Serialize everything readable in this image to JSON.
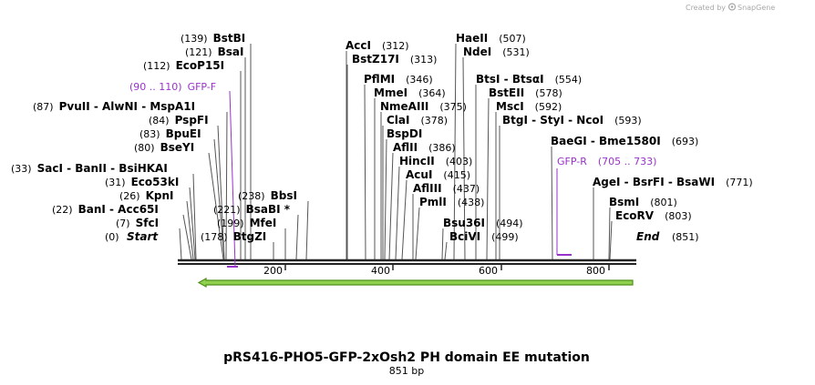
{
  "credit": {
    "text": "Created by",
    "brand": "SnapGene"
  },
  "title": "pRS416-PHO5-GFP-2xOsh2 PH domain EE mutation",
  "subtitle": "851 bp",
  "seq_length": 851,
  "ticks": [
    "200",
    "400",
    "600",
    "800"
  ],
  "ends": {
    "start": {
      "pos": "(0)",
      "name": "Start"
    },
    "end": {
      "pos": "(851)",
      "name": "End"
    }
  },
  "left_labels": [
    {
      "pos": "(139)",
      "text": "BstBI"
    },
    {
      "pos": "(121)",
      "text": "BsaI"
    },
    {
      "pos": "(112)",
      "text": "EcoP15I"
    },
    {
      "pos": "(87)",
      "text": "PvuII - AlwNI - MspA1I"
    },
    {
      "pos": "(84)",
      "text": "PspFI"
    },
    {
      "pos": "(83)",
      "text": "BpuEI"
    },
    {
      "pos": "(80)",
      "text": "BseYI"
    },
    {
      "pos": "(33)",
      "text": "SacI - BanII - BsiHKAI"
    },
    {
      "pos": "(31)",
      "text": "Eco53kI"
    },
    {
      "pos": "(26)",
      "text": "KpnI"
    },
    {
      "pos": "(22)",
      "text": "BanI - Acc65I"
    },
    {
      "pos": "(7)",
      "text": "SfcI"
    }
  ],
  "inner_labels": [
    {
      "pos": "(238)",
      "text": "BbsI"
    },
    {
      "pos": "(221)",
      "text": "BsaBI *"
    },
    {
      "pos": "(199)",
      "text": "MfeI"
    },
    {
      "pos": "(178)",
      "text": "BtgZI"
    }
  ],
  "right_labels": [
    {
      "pos": "(312)",
      "text": "AccI"
    },
    {
      "pos": "(313)",
      "text": "BstZ17I"
    },
    {
      "pos": "(346)",
      "text": "PflMI"
    },
    {
      "pos": "(364)",
      "text": "MmeI"
    },
    {
      "pos": "(375)",
      "text": "NmeAIII"
    },
    {
      "pos": "(378)",
      "text": "ClaI"
    },
    {
      "pos": "",
      "text": "BspDI"
    },
    {
      "pos": "(386)",
      "text": "AflII"
    },
    {
      "pos": "(403)",
      "text": "HincII"
    },
    {
      "pos": "(415)",
      "text": "AcuI"
    },
    {
      "pos": "(437)",
      "text": "AflIII"
    },
    {
      "pos": "(438)",
      "text": "PmlI"
    },
    {
      "pos": "(507)",
      "text": "HaeII"
    },
    {
      "pos": "(531)",
      "text": "NdeI"
    },
    {
      "pos": "(554)",
      "text": "BtsI - BtsαI"
    },
    {
      "pos": "(578)",
      "text": "BstEII"
    },
    {
      "pos": "(592)",
      "text": "MscI"
    },
    {
      "pos": "(593)",
      "text": "BtgI - StyI - NcoI"
    },
    {
      "pos": "(494)",
      "text": "Bsu36I"
    },
    {
      "pos": "(499)",
      "text": "BciVI"
    },
    {
      "pos": "(693)",
      "text": "BaeGI - Bme1580I"
    },
    {
      "pos": "(771)",
      "text": "AgeI - BsrFI - BsaWI"
    },
    {
      "pos": "(801)",
      "text": "BsmI"
    },
    {
      "pos": "(803)",
      "text": "EcoRV"
    }
  ],
  "primers": [
    {
      "name": "GFP-F",
      "pos": "(90 .. 110)",
      "start": 90,
      "end": 110,
      "color": "#9932cc"
    },
    {
      "name": "GFP-R",
      "pos": "(705 .. 733)",
      "start": 705,
      "end": 733,
      "color": "#9932cc"
    }
  ],
  "feature": {
    "start": 33,
    "end": 844,
    "fill": "#8fd14f",
    "outline": "#4f8f1a",
    "direction": "reverse"
  },
  "colors": {
    "backbone": "#222222",
    "primer": "#9932cc",
    "feature_fill": "#8fd14f",
    "feature_outline": "#4f8f1a"
  }
}
